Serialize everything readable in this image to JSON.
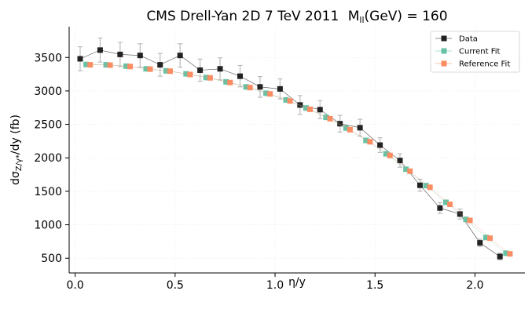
{
  "chart_data": {
    "type": "scatter",
    "title": "CMS Drell-Yan 2D 7 TeV 2011",
    "title_suffix": "(GeV) = 160",
    "title_var": "M",
    "title_var_sub": "ll",
    "xlabel": "η/y",
    "ylabel_prefix": "dσ",
    "ylabel_sub": "Z/γ*",
    "ylabel_suffix": "/dy (fb)",
    "xlim": [
      -0.03,
      2.25
    ],
    "ylim": [
      280,
      3960
    ],
    "xticks": [
      0.0,
      0.5,
      1.0,
      1.5,
      2.0
    ],
    "xtick_labels": [
      "0.0",
      "0.5",
      "1.0",
      "1.5",
      "2.0"
    ],
    "yticks": [
      500,
      1000,
      1500,
      2000,
      2500,
      3000,
      3500
    ],
    "ytick_labels": [
      "500",
      "1000",
      "1500",
      "2000",
      "2500",
      "3000",
      "3500"
    ],
    "grid": true,
    "legend_position": "top-right",
    "series": [
      {
        "name": "Data",
        "color": "#222222",
        "x": [
          0.025,
          0.125,
          0.225,
          0.325,
          0.425,
          0.525,
          0.625,
          0.725,
          0.825,
          0.925,
          1.025,
          1.125,
          1.225,
          1.325,
          1.425,
          1.525,
          1.625,
          1.725,
          1.825,
          1.925,
          2.025,
          2.125
        ],
        "y": [
          3480,
          3610,
          3545,
          3530,
          3390,
          3530,
          3310,
          3330,
          3220,
          3060,
          3030,
          2790,
          2720,
          2510,
          2450,
          2190,
          1960,
          1590,
          1250,
          1160,
          730,
          525
        ],
        "yerr": [
          180,
          180,
          180,
          175,
          170,
          175,
          165,
          165,
          160,
          155,
          150,
          140,
          135,
          125,
          125,
          110,
          100,
          90,
          80,
          75,
          55,
          50
        ]
      },
      {
        "name": "Current Fit",
        "color": "#66c2a5",
        "x": [
          0.055,
          0.155,
          0.255,
          0.355,
          0.455,
          0.555,
          0.655,
          0.755,
          0.855,
          0.955,
          1.055,
          1.155,
          1.255,
          1.355,
          1.455,
          1.555,
          1.655,
          1.755,
          1.855,
          1.955,
          2.055,
          2.155
        ],
        "y": [
          3395,
          3390,
          3370,
          3330,
          3300,
          3255,
          3200,
          3135,
          3060,
          2965,
          2865,
          2745,
          2605,
          2445,
          2260,
          2060,
          1830,
          1585,
          1335,
          1080,
          810,
          575
        ]
      },
      {
        "name": "Reference Fit",
        "color": "#fc8d62",
        "x": [
          0.075,
          0.175,
          0.275,
          0.375,
          0.475,
          0.575,
          0.675,
          0.775,
          0.875,
          0.975,
          1.075,
          1.175,
          1.275,
          1.375,
          1.475,
          1.575,
          1.675,
          1.775,
          1.875,
          1.975,
          2.075,
          2.175
        ],
        "y": [
          3390,
          3385,
          3365,
          3325,
          3295,
          3245,
          3195,
          3125,
          3050,
          2955,
          2850,
          2725,
          2585,
          2420,
          2240,
          2035,
          1800,
          1560,
          1305,
          1065,
          800,
          565
        ]
      }
    ]
  }
}
